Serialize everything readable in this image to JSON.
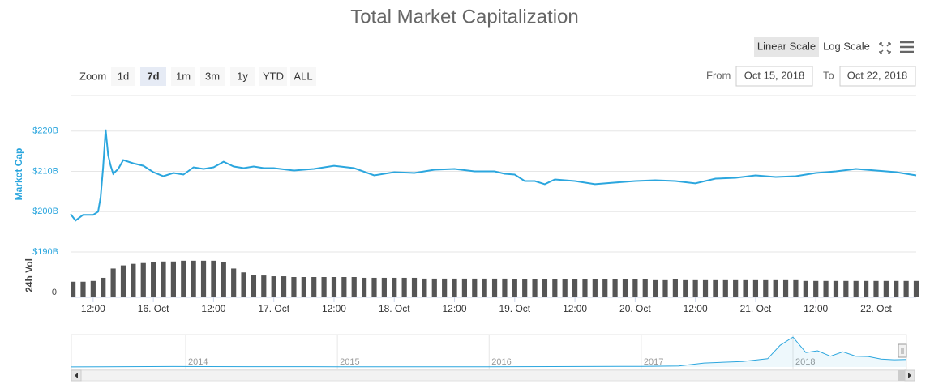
{
  "toolbar": {
    "scale_buttons": [
      "Linear Scale",
      "Log Scale"
    ],
    "active_scale": "Linear Scale",
    "zoom_label": "Zoom",
    "zoom_buttons": [
      "1d",
      "7d",
      "1m",
      "3m",
      "1y",
      "YTD",
      "ALL"
    ],
    "active_zoom": "7d",
    "from_label": "From",
    "from_date": "Oct 15, 2018",
    "to_label": "To",
    "to_date": "Oct 22, 2018"
  },
  "chart_data": [
    {
      "type": "line",
      "title": "Total Market Capitalization",
      "ylabel": "Market Cap",
      "color": "#2ba6de",
      "xlim": [
        "2018-10-15 07:30",
        "2018-10-22 08:00"
      ],
      "ylim": [
        190,
        228.8
      ],
      "yticks": [
        {
          "value": 220,
          "label": "$220B"
        },
        {
          "value": 210,
          "label": "$210B"
        },
        {
          "value": 200,
          "label": "$200B"
        },
        {
          "value": 190,
          "label": "$190B"
        }
      ],
      "grid": true,
      "x": [
        "2018-10-15 07:30",
        "2018-10-15 08:30",
        "2018-10-15 10:00",
        "2018-10-15 12:00",
        "2018-10-15 13:00",
        "2018-10-15 13:30",
        "2018-10-15 14:00",
        "2018-10-15 14:30",
        "2018-10-15 15:00",
        "2018-10-15 15:30",
        "2018-10-15 16:00",
        "2018-10-15 17:00",
        "2018-10-15 18:00",
        "2018-10-15 20:00",
        "2018-10-15 22:00",
        "2018-10-16 00:00",
        "2018-10-16 02:00",
        "2018-10-16 04:00",
        "2018-10-16 06:00",
        "2018-10-16 08:00",
        "2018-10-16 10:00",
        "2018-10-16 12:00",
        "2018-10-16 14:00",
        "2018-10-16 16:00",
        "2018-10-16 18:00",
        "2018-10-16 20:00",
        "2018-10-16 22:00",
        "2018-10-17 00:00",
        "2018-10-17 04:00",
        "2018-10-17 08:00",
        "2018-10-17 12:00",
        "2018-10-17 16:00",
        "2018-10-17 20:00",
        "2018-10-18 00:00",
        "2018-10-18 04:00",
        "2018-10-18 08:00",
        "2018-10-18 12:00",
        "2018-10-18 16:00",
        "2018-10-18 20:00",
        "2018-10-18 22:00",
        "2018-10-19 00:00",
        "2018-10-19 02:00",
        "2018-10-19 04:00",
        "2018-10-19 06:00",
        "2018-10-19 08:00",
        "2018-10-19 12:00",
        "2018-10-19 16:00",
        "2018-10-19 20:00",
        "2018-10-20 00:00",
        "2018-10-20 04:00",
        "2018-10-20 08:00",
        "2018-10-20 12:00",
        "2018-10-20 16:00",
        "2018-10-20 20:00",
        "2018-10-21 00:00",
        "2018-10-21 04:00",
        "2018-10-21 08:00",
        "2018-10-21 12:00",
        "2018-10-21 16:00",
        "2018-10-21 20:00",
        "2018-10-22 00:00",
        "2018-10-22 04:00",
        "2018-10-22 08:00"
      ],
      "values": [
        199.4,
        197.8,
        199.2,
        199.2,
        200.0,
        203.6,
        211.0,
        220.4,
        214.0,
        211.4,
        209.4,
        210.6,
        212.8,
        212.0,
        211.4,
        209.8,
        208.8,
        209.6,
        209.2,
        211.0,
        210.6,
        211.0,
        212.4,
        211.2,
        210.8,
        211.2,
        210.8,
        210.8,
        210.2,
        210.6,
        211.4,
        210.8,
        209.0,
        209.8,
        209.6,
        210.4,
        210.6,
        210.0,
        210.0,
        209.4,
        209.2,
        207.6,
        207.6,
        206.8,
        208.0,
        207.6,
        206.8,
        207.2,
        207.6,
        207.8,
        207.6,
        207.0,
        208.2,
        208.4,
        209.0,
        208.6,
        208.8,
        209.6,
        210.0,
        210.6,
        210.2,
        209.8,
        209.0
      ]
    },
    {
      "type": "bar",
      "ylabel": "24h Vol",
      "color": "#555555",
      "xlim": [
        "2018-10-15 07:30",
        "2018-10-22 08:00"
      ],
      "ylim": [
        0,
        50
      ],
      "yticks": [
        0
      ],
      "xticks": [
        {
          "value": "2018-10-15 12:00",
          "label": "12:00"
        },
        {
          "value": "2018-10-16 00:00",
          "label": "16. Oct"
        },
        {
          "value": "2018-10-16 12:00",
          "label": "12:00"
        },
        {
          "value": "2018-10-17 00:00",
          "label": "17. Oct"
        },
        {
          "value": "2018-10-17 12:00",
          "label": "12:00"
        },
        {
          "value": "2018-10-18 00:00",
          "label": "18. Oct"
        },
        {
          "value": "2018-10-18 12:00",
          "label": "12:00"
        },
        {
          "value": "2018-10-19 00:00",
          "label": "19. Oct"
        },
        {
          "value": "2018-10-19 12:00",
          "label": "12:00"
        },
        {
          "value": "2018-10-20 00:00",
          "label": "20. Oct"
        },
        {
          "value": "2018-10-20 12:00",
          "label": "12:00"
        },
        {
          "value": "2018-10-21 00:00",
          "label": "21. Oct"
        },
        {
          "value": "2018-10-21 12:00",
          "label": "12:00"
        },
        {
          "value": "2018-10-22 00:00",
          "label": "22. Oct"
        }
      ],
      "x": [
        "2018-10-15 08:00",
        "2018-10-15 10:00",
        "2018-10-15 12:00",
        "2018-10-15 14:00",
        "2018-10-15 16:00",
        "2018-10-15 18:00",
        "2018-10-15 20:00",
        "2018-10-15 22:00",
        "2018-10-16 00:00",
        "2018-10-16 02:00",
        "2018-10-16 04:00",
        "2018-10-16 06:00",
        "2018-10-16 08:00",
        "2018-10-16 10:00",
        "2018-10-16 12:00",
        "2018-10-16 14:00",
        "2018-10-16 16:00",
        "2018-10-16 18:00",
        "2018-10-16 20:00",
        "2018-10-16 22:00",
        "2018-10-17 00:00",
        "2018-10-17 02:00",
        "2018-10-17 04:00",
        "2018-10-17 06:00",
        "2018-10-17 08:00",
        "2018-10-17 10:00",
        "2018-10-17 12:00",
        "2018-10-17 14:00",
        "2018-10-17 16:00",
        "2018-10-17 18:00",
        "2018-10-17 20:00",
        "2018-10-17 22:00",
        "2018-10-18 00:00",
        "2018-10-18 02:00",
        "2018-10-18 04:00",
        "2018-10-18 06:00",
        "2018-10-18 08:00",
        "2018-10-18 10:00",
        "2018-10-18 12:00",
        "2018-10-18 14:00",
        "2018-10-18 16:00",
        "2018-10-18 18:00",
        "2018-10-18 20:00",
        "2018-10-18 22:00",
        "2018-10-19 00:00",
        "2018-10-19 02:00",
        "2018-10-19 04:00",
        "2018-10-19 06:00",
        "2018-10-19 08:00",
        "2018-10-19 10:00",
        "2018-10-19 12:00",
        "2018-10-19 14:00",
        "2018-10-19 16:00",
        "2018-10-19 18:00",
        "2018-10-19 20:00",
        "2018-10-19 22:00",
        "2018-10-20 00:00",
        "2018-10-20 02:00",
        "2018-10-20 04:00",
        "2018-10-20 06:00",
        "2018-10-20 08:00",
        "2018-10-20 10:00",
        "2018-10-20 12:00",
        "2018-10-20 14:00",
        "2018-10-20 16:00",
        "2018-10-20 18:00",
        "2018-10-20 20:00",
        "2018-10-20 22:00",
        "2018-10-21 00:00",
        "2018-10-21 02:00",
        "2018-10-21 04:00",
        "2018-10-21 06:00",
        "2018-10-21 08:00",
        "2018-10-21 10:00",
        "2018-10-21 12:00",
        "2018-10-21 14:00",
        "2018-10-21 16:00",
        "2018-10-21 18:00",
        "2018-10-21 20:00",
        "2018-10-21 22:00",
        "2018-10-22 00:00",
        "2018-10-22 02:00",
        "2018-10-22 04:00",
        "2018-10-22 06:00",
        "2018-10-22 08:00"
      ],
      "values": [
        19,
        19,
        20,
        24,
        36,
        40,
        42,
        43,
        44,
        45,
        45,
        46,
        46,
        46,
        46,
        44,
        36,
        31,
        28,
        27,
        26,
        26,
        25,
        25,
        25,
        25,
        25,
        25,
        25,
        24,
        24,
        24,
        24,
        24,
        24,
        23,
        23,
        23,
        23,
        23,
        23,
        23,
        23,
        23,
        22,
        22,
        22,
        22,
        22,
        22,
        22,
        22,
        22,
        22,
        22,
        22,
        22,
        22,
        21,
        21,
        22,
        21,
        21,
        21,
        21,
        21,
        21,
        21,
        21,
        21,
        21,
        21,
        21,
        20,
        20,
        20,
        20,
        20,
        20,
        20,
        20,
        20,
        20,
        20,
        20
      ]
    },
    {
      "type": "area",
      "color": "#2ba6de",
      "xlim": [
        "2013-04",
        "2018-10"
      ],
      "ylim": [
        0,
        900
      ],
      "xticks": [
        {
          "value": "2014-01",
          "label": "2014"
        },
        {
          "value": "2015-01",
          "label": "2015"
        },
        {
          "value": "2016-01",
          "label": "2016"
        },
        {
          "value": "2017-01",
          "label": "2017"
        },
        {
          "value": "2018-01",
          "label": "2018"
        }
      ],
      "x": [
        "2013-04",
        "2013-12",
        "2014-06",
        "2015-01",
        "2016-01",
        "2016-06",
        "2017-01",
        "2017-04",
        "2017-06",
        "2017-09",
        "2017-11",
        "2017-12",
        "2018-01",
        "2018-02",
        "2018-03",
        "2018-04",
        "2018-05",
        "2018-06",
        "2018-07",
        "2018-08",
        "2018-09",
        "2018-10"
      ],
      "values": [
        1.5,
        13,
        9,
        6,
        7,
        12,
        18,
        30,
        110,
        150,
        230,
        600,
        830,
        400,
        450,
        300,
        420,
        300,
        290,
        220,
        200,
        210
      ]
    }
  ]
}
